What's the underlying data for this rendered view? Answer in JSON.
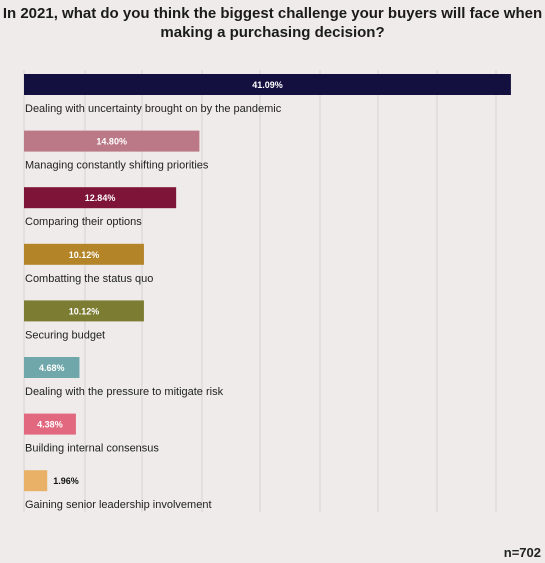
{
  "chart_data": {
    "type": "bar",
    "orientation": "horizontal",
    "title": "In 2021, what do you think the biggest challenge your buyers will face when making a purchasing decision?",
    "xlim": [
      0,
      42
    ],
    "grid": true,
    "categories": [
      "Dealing with uncertainty brought on by the pandemic",
      "Managing constantly shifting priorities",
      "Comparing their options",
      "Combatting the status quo",
      "Securing budget",
      "Dealing with the pressure to mitigate risk",
      "Building internal consensus",
      "Gaining senior leadership involvement"
    ],
    "values": [
      41.09,
      14.8,
      12.84,
      10.12,
      10.12,
      4.68,
      4.38,
      1.96
    ],
    "value_labels": [
      "41.09%",
      "14.80%",
      "12.84%",
      "10.12%",
      "10.12%",
      "4.68%",
      "4.38%",
      "1.96%"
    ],
    "colors": [
      "#13103f",
      "#bb7886",
      "#7e1437",
      "#b38528",
      "#7c7c33",
      "#6fa7aa",
      "#e2687f",
      "#e8b167"
    ],
    "value_label_colors": [
      "#ffffff",
      "#ffffff",
      "#ffffff",
      "#ffffff",
      "#ffffff",
      "#ffffff",
      "#ffffff",
      "#111111"
    ]
  },
  "sample_note": "n=702"
}
